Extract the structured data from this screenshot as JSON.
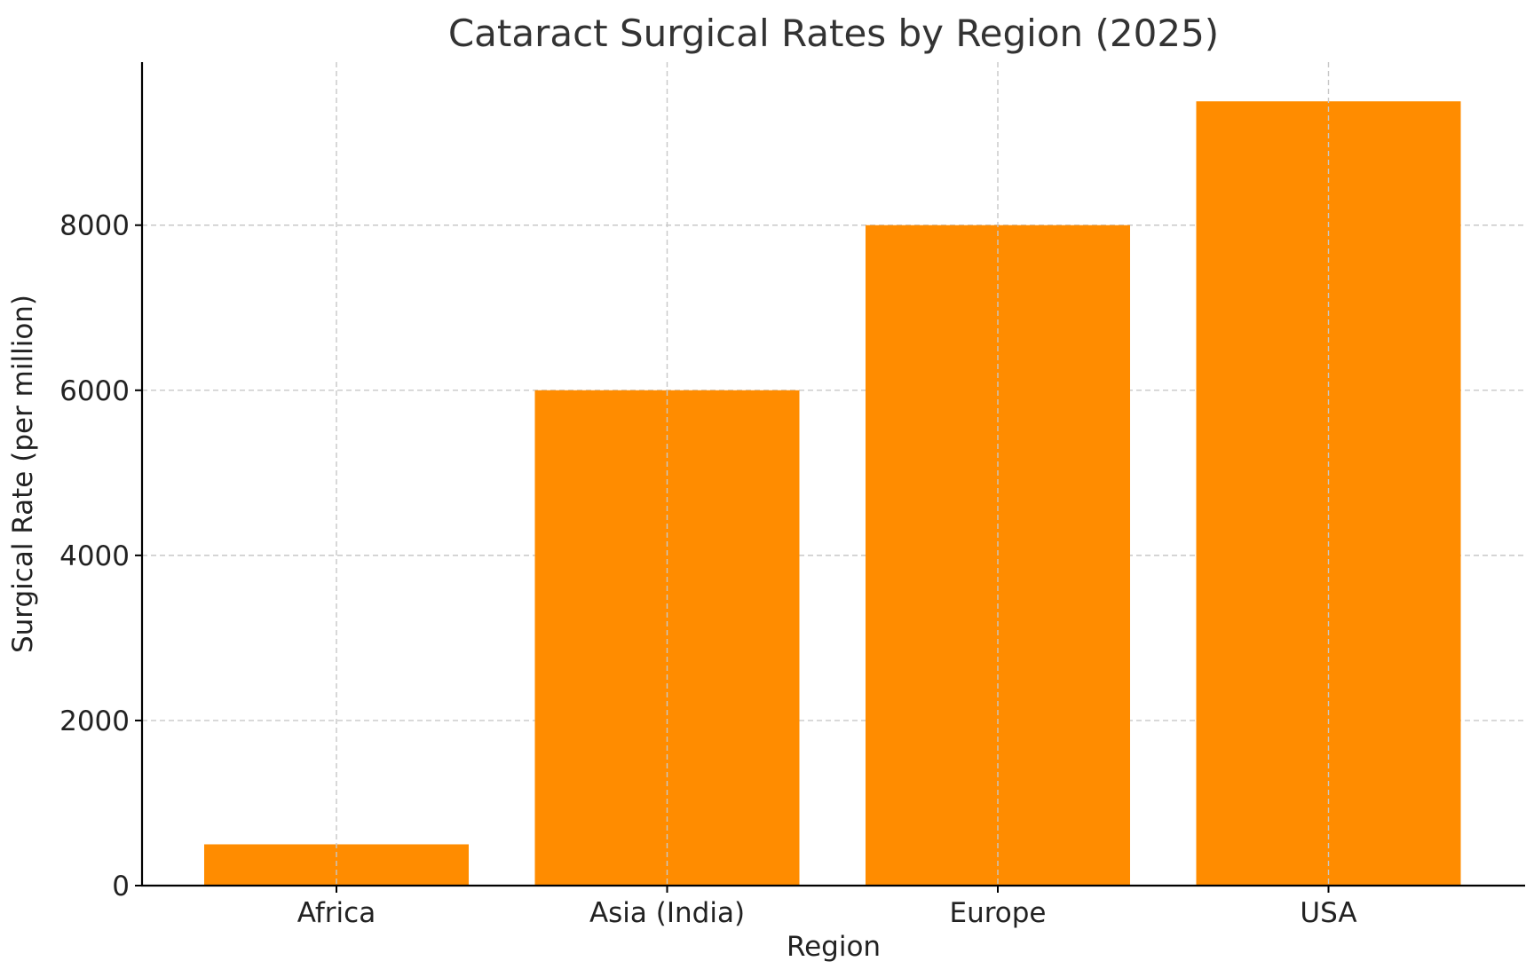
{
  "chart_data": {
    "type": "bar",
    "title": "Cataract Surgical Rates by Region (2025)",
    "xlabel": "Region",
    "ylabel": "Surgical Rate (per million)",
    "categories": [
      "Africa",
      "Asia (India)",
      "Europe",
      "USA"
    ],
    "values": [
      500,
      6000,
      8000,
      9500
    ],
    "ylim": [
      0,
      9975
    ],
    "yticks": [
      0,
      2000,
      4000,
      6000,
      8000
    ],
    "ytick_labels": [
      "0",
      "2000",
      "4000",
      "6000",
      "8000"
    ],
    "grid": true,
    "bar_color": "#ff8c00",
    "legend": null
  }
}
